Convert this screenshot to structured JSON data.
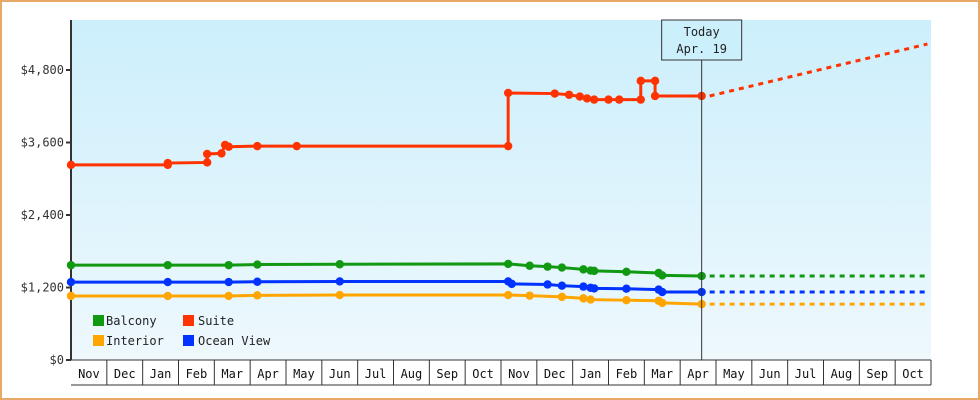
{
  "chart_data": {
    "type": "line",
    "title": "",
    "xlabel": "",
    "ylabel": "",
    "ylim": [
      0,
      5300
    ],
    "y_ticks": [
      "$0",
      "$1,200",
      "$2,400",
      "$3,600",
      "$4,800"
    ],
    "y_tick_values": [
      0,
      1200,
      2400,
      3600,
      4800
    ],
    "x_ticks": [
      "Nov",
      "Dec",
      "Jan",
      "Feb",
      "Mar",
      "Apr",
      "May",
      "Jun",
      "Jul",
      "Aug",
      "Sep",
      "Oct",
      "Nov",
      "Dec",
      "Jan",
      "Feb",
      "Mar",
      "Apr",
      "May",
      "Jun",
      "Jul",
      "Aug",
      "Sep",
      "Oct"
    ],
    "grid": false,
    "legend_position": "bottom-left inside",
    "today_marker": {
      "line1": "Today",
      "line2": "Apr. 19",
      "month_index": 17.6
    },
    "series": [
      {
        "name": "Balcony",
        "color": "#119911",
        "points": [
          [
            0,
            1570
          ],
          [
            2.7,
            1570
          ],
          [
            4.4,
            1570
          ],
          [
            5.2,
            1580
          ],
          [
            7.5,
            1585
          ],
          [
            12.2,
            1590
          ],
          [
            12.8,
            1560
          ],
          [
            13.3,
            1545
          ],
          [
            13.7,
            1530
          ],
          [
            14.3,
            1500
          ],
          [
            14.5,
            1480
          ],
          [
            14.6,
            1475
          ],
          [
            15.5,
            1460
          ],
          [
            16.4,
            1440
          ],
          [
            16.5,
            1400
          ],
          [
            17.6,
            1390
          ]
        ],
        "projection": [
          [
            17.6,
            1390
          ],
          [
            23.9,
            1390
          ]
        ]
      },
      {
        "name": "Suite",
        "color": "#ff3300",
        "points": [
          [
            0,
            3230
          ],
          [
            2.7,
            3230
          ],
          [
            2.7,
            3260
          ],
          [
            3.8,
            3270
          ],
          [
            3.8,
            3410
          ],
          [
            4.2,
            3420
          ],
          [
            4.3,
            3560
          ],
          [
            4.4,
            3530
          ],
          [
            5.2,
            3540
          ],
          [
            6.3,
            3540
          ],
          [
            12.2,
            3540
          ],
          [
            12.2,
            4420
          ],
          [
            13.5,
            4410
          ],
          [
            13.9,
            4390
          ],
          [
            14.2,
            4360
          ],
          [
            14.4,
            4330
          ],
          [
            14.6,
            4310
          ],
          [
            15.0,
            4310
          ],
          [
            15.3,
            4310
          ],
          [
            15.9,
            4310
          ],
          [
            15.9,
            4620
          ],
          [
            16.3,
            4620
          ],
          [
            16.3,
            4370
          ],
          [
            17.6,
            4370
          ]
        ],
        "projection": [
          [
            17.6,
            4370
          ],
          [
            23.9,
            5230
          ]
        ]
      },
      {
        "name": "Interior",
        "color": "#ffa500",
        "points": [
          [
            0,
            1060
          ],
          [
            2.7,
            1060
          ],
          [
            4.4,
            1060
          ],
          [
            5.2,
            1070
          ],
          [
            7.5,
            1075
          ],
          [
            12.2,
            1075
          ],
          [
            12.8,
            1065
          ],
          [
            13.7,
            1045
          ],
          [
            14.3,
            1020
          ],
          [
            14.5,
            1000
          ],
          [
            15.5,
            990
          ],
          [
            16.4,
            980
          ],
          [
            16.5,
            945
          ],
          [
            17.6,
            925
          ]
        ],
        "projection": [
          [
            17.6,
            925
          ],
          [
            23.9,
            925
          ]
        ]
      },
      {
        "name": "Ocean View",
        "color": "#0033ff",
        "points": [
          [
            0,
            1290
          ],
          [
            2.7,
            1290
          ],
          [
            4.4,
            1290
          ],
          [
            5.2,
            1295
          ],
          [
            7.5,
            1300
          ],
          [
            12.2,
            1300
          ],
          [
            12.3,
            1260
          ],
          [
            13.3,
            1250
          ],
          [
            13.7,
            1230
          ],
          [
            14.3,
            1215
          ],
          [
            14.5,
            1195
          ],
          [
            14.6,
            1185
          ],
          [
            15.5,
            1180
          ],
          [
            16.4,
            1165
          ],
          [
            16.5,
            1125
          ],
          [
            17.6,
            1125
          ]
        ],
        "projection": [
          [
            17.6,
            1125
          ],
          [
            23.9,
            1125
          ]
        ]
      }
    ]
  },
  "legend": {
    "items": [
      {
        "label": "Balcony",
        "color": "#119911"
      },
      {
        "label": "Suite",
        "color": "#ff3300"
      },
      {
        "label": "Interior",
        "color": "#ffa500"
      },
      {
        "label": "Ocean View",
        "color": "#0033ff"
      }
    ]
  },
  "today": {
    "line1": "Today",
    "line2": "Apr. 19"
  },
  "colors": {
    "frame_border": "#e8a868",
    "plot_bg_top": "#cceffc",
    "plot_bg_bottom": "#eef8fd",
    "axis": "#333333"
  }
}
